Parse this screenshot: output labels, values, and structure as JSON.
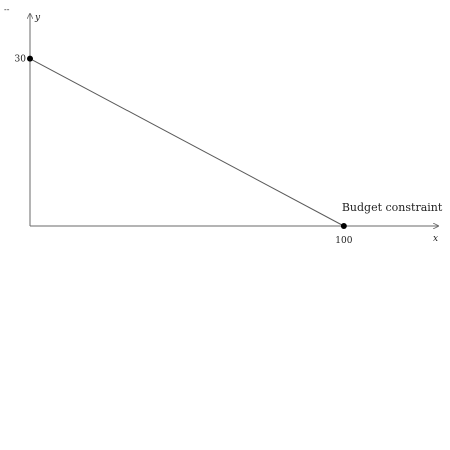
{
  "chart_data": {
    "type": "line",
    "xlabel": "x",
    "ylabel": "y",
    "corner_mark": "--",
    "xlim": [
      0,
      130
    ],
    "ylim": [
      0,
      38
    ],
    "series": [
      {
        "name": "Budget constraint",
        "x": [
          0,
          100
        ],
        "y": [
          30,
          0
        ]
      }
    ],
    "points": [
      {
        "x": 0,
        "y": 30
      },
      {
        "x": 100,
        "y": 0
      }
    ],
    "x_ticks": [
      {
        "value": 100,
        "label": "100"
      }
    ],
    "y_ticks": [
      {
        "value": 30,
        "label": "30"
      }
    ],
    "annotations": [
      {
        "text": "Budget constraint",
        "x": 100,
        "y": 0
      }
    ],
    "grid": false,
    "legend": "none",
    "colors": {
      "line": "#5a5a5a",
      "axis": "#6a6a6a",
      "point": "#000000",
      "text": "#222222"
    }
  }
}
